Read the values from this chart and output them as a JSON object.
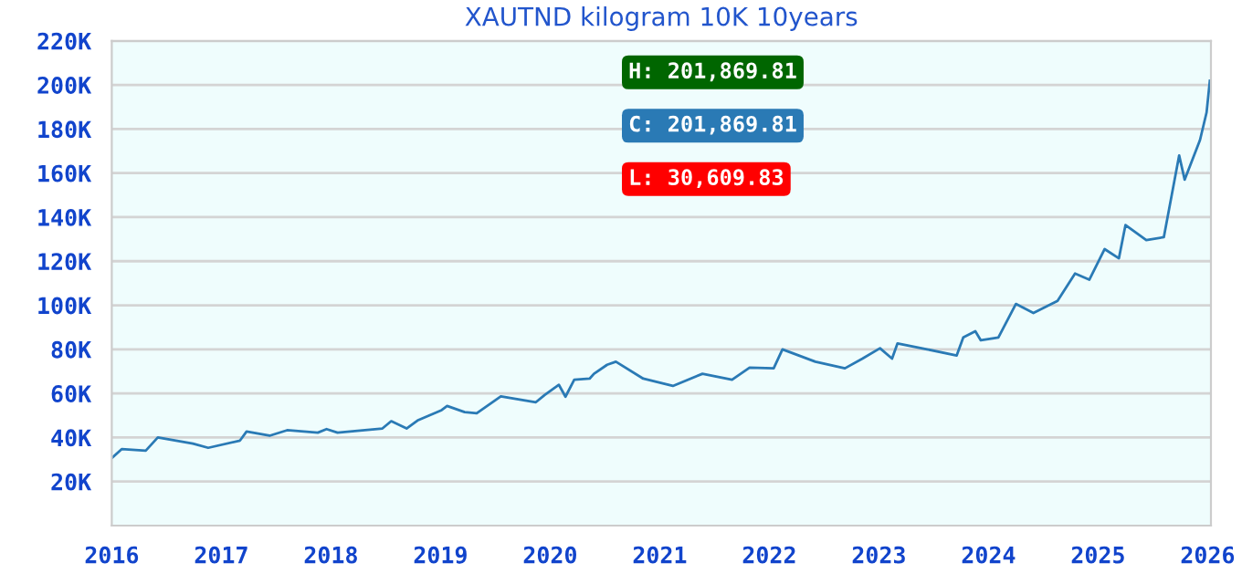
{
  "chart_data": {
    "type": "line",
    "title": "XAUTND kilogram 10K 10years",
    "x": [
      2016.0,
      2016.09,
      2016.31,
      2016.42,
      2016.74,
      2016.88,
      2017.17,
      2017.23,
      2017.44,
      2017.6,
      2017.88,
      2017.96,
      2018.06,
      2018.47,
      2018.55,
      2018.69,
      2018.79,
      2019.01,
      2019.06,
      2019.22,
      2019.33,
      2019.55,
      2019.71,
      2019.87,
      2019.95,
      2020.08,
      2020.14,
      2020.22,
      2020.36,
      2020.4,
      2020.52,
      2020.6,
      2020.85,
      2021.12,
      2021.39,
      2021.66,
      2021.82,
      2022.04,
      2022.12,
      2022.42,
      2022.69,
      2022.85,
      2023.01,
      2023.12,
      2023.17,
      2023.44,
      2023.71,
      2023.77,
      2023.88,
      2023.93,
      2024.09,
      2024.25,
      2024.41,
      2024.63,
      2024.79,
      2024.92,
      2025.06,
      2025.19,
      2025.25,
      2025.44,
      2025.6,
      2025.74,
      2025.79,
      2025.93,
      2025.99,
      2026.02
    ],
    "series": [
      {
        "color": "#2a7ab5",
        "values": [
          30610,
          34700,
          34000,
          40000,
          37200,
          35300,
          38600,
          42700,
          40800,
          43300,
          42200,
          43800,
          42200,
          44100,
          47400,
          44100,
          47700,
          52400,
          54300,
          51500,
          51000,
          58700,
          57300,
          56000,
          59300,
          63900,
          58500,
          66200,
          66700,
          68900,
          73000,
          74400,
          66700,
          63400,
          68900,
          66200,
          71700,
          71400,
          80000,
          74400,
          71400,
          75800,
          80500,
          75800,
          82700,
          80000,
          77200,
          85400,
          88200,
          84100,
          85400,
          100600,
          96500,
          102000,
          114400,
          111600,
          125500,
          121300,
          136400,
          129600,
          130900,
          168000,
          157000,
          175000,
          187500,
          201870
        ]
      }
    ],
    "xlim": [
      2016,
      2026.03
    ],
    "xticks": [
      2016,
      2017,
      2018,
      2019,
      2020,
      2021,
      2022,
      2023,
      2024,
      2025,
      2026
    ],
    "ylim": [
      0,
      220000
    ],
    "yticks": [
      {
        "value": 20000,
        "label": "20K"
      },
      {
        "value": 40000,
        "label": "40K"
      },
      {
        "value": 60000,
        "label": "60K"
      },
      {
        "value": 80000,
        "label": "80K"
      },
      {
        "value": 100000,
        "label": "100K"
      },
      {
        "value": 120000,
        "label": "120K"
      },
      {
        "value": 140000,
        "label": "140K"
      },
      {
        "value": 160000,
        "label": "160K"
      },
      {
        "value": 180000,
        "label": "180K"
      },
      {
        "value": 200000,
        "label": "200K"
      },
      {
        "value": 220000,
        "label": "220K"
      }
    ],
    "grid": "y",
    "annotations": [
      "H: 201,869.81",
      "C: 201,869.81",
      "L: 30,609.83"
    ]
  }
}
